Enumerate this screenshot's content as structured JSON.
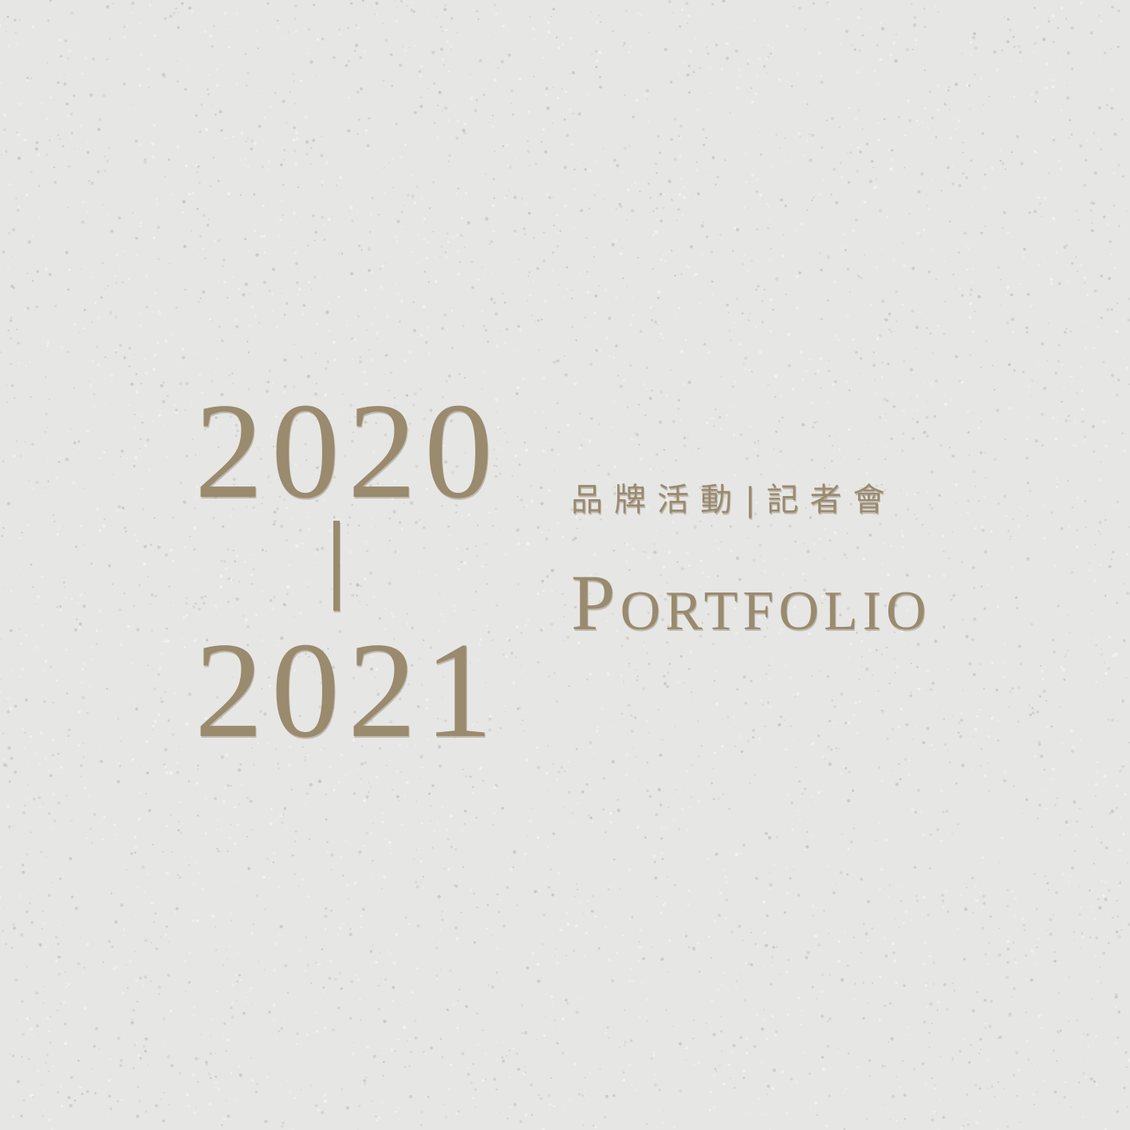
{
  "colors": {
    "background": "#e6e6e4",
    "paper_speck_dark": "#bcbcb8",
    "paper_speck_light": "#f6f6f4",
    "gold_text": "#9a8a6e",
    "gold_shadow": "#6f604a"
  },
  "years": {
    "start": "2020",
    "divider": "|",
    "end": "2021"
  },
  "tagline": {
    "left": "品牌活動",
    "separator": "|",
    "right": "記者會"
  },
  "title": "Portfolio"
}
